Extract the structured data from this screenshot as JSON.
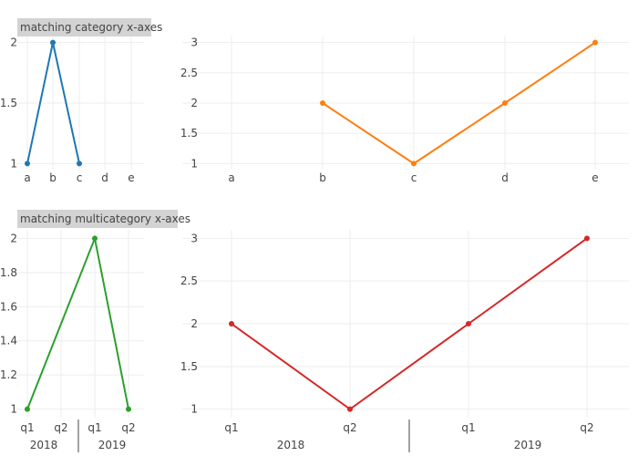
{
  "chart_data": [
    {
      "type": "line",
      "title": "matching category x-axes",
      "categories": [
        "a",
        "b",
        "c",
        "d",
        "e"
      ],
      "series": [
        {
          "x": [
            "a",
            "b",
            "c"
          ],
          "values": [
            1,
            2,
            1
          ],
          "color": "#1f77b4"
        }
      ],
      "yticks": [
        "1",
        "1.5",
        "2"
      ],
      "ylim": [
        0.95,
        2.05
      ],
      "grid": true
    },
    {
      "type": "line",
      "categories": [
        "a",
        "b",
        "c",
        "d",
        "e"
      ],
      "series": [
        {
          "x": [
            "b",
            "c",
            "d",
            "e"
          ],
          "values": [
            2,
            1,
            2,
            3
          ],
          "color": "#ff7f0e"
        }
      ],
      "yticks": [
        "1",
        "1.5",
        "2",
        "2.5",
        "3"
      ],
      "ylim": [
        0.9,
        3.1
      ],
      "grid": true
    },
    {
      "type": "line",
      "title": "matching multicategory x-axes",
      "categories": [
        "q1",
        "q2",
        "q1",
        "q2"
      ],
      "groups": [
        {
          "label": "2018",
          "items": [
            "q1",
            "q2"
          ]
        },
        {
          "label": "2019",
          "items": [
            "q1",
            "q2"
          ]
        }
      ],
      "series": [
        {
          "x": [
            0,
            2,
            3
          ],
          "values": [
            1,
            2,
            1
          ],
          "color": "#2ca02c"
        }
      ],
      "yticks": [
        "1",
        "1.2",
        "1.4",
        "1.6",
        "1.8",
        "2"
      ],
      "ylim": [
        0.95,
        2.05
      ],
      "grid": true
    },
    {
      "type": "line",
      "categories": [
        "q1",
        "q2",
        "q1",
        "q2"
      ],
      "groups": [
        {
          "label": "2018",
          "items": [
            "q1",
            "q2"
          ]
        },
        {
          "label": "2019",
          "items": [
            "q1",
            "q2"
          ]
        }
      ],
      "series": [
        {
          "x": [
            0,
            1,
            2,
            3
          ],
          "values": [
            2,
            1,
            2,
            3
          ],
          "color": "#d62728"
        }
      ],
      "yticks": [
        "1",
        "1.5",
        "2",
        "2.5",
        "3"
      ],
      "ylim": [
        0.9,
        3.1
      ],
      "grid": true
    }
  ]
}
